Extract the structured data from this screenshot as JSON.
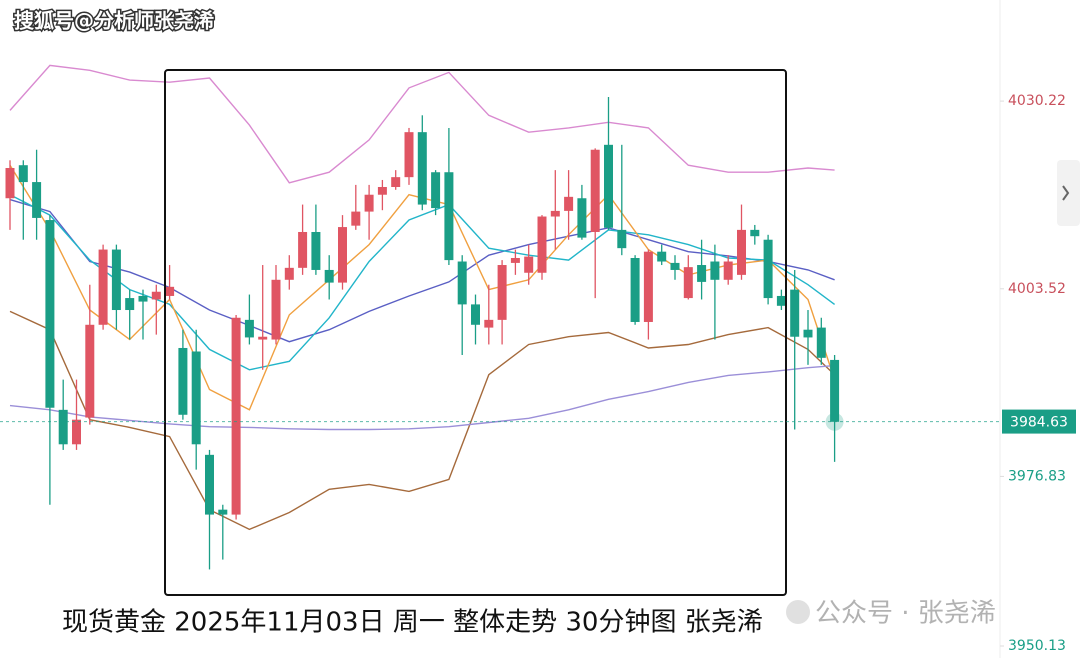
{
  "chart_data": {
    "type": "candlestick",
    "watermark": "搜狐号@分析师张尧浠",
    "caption": "现货黄金 2025年11月03日 周一  整体走势 30分钟图 张尧浠",
    "watermark2": "公众号 · 张尧浠",
    "up_color": "#e05563",
    "down_color": "#1a9e86",
    "ylim": [
      3951,
      4044.6
    ],
    "yticks": [
      4030.22,
      4003.52,
      3976.83,
      3950.13
    ],
    "last_price": 3984.63,
    "ohlc": [
      [
        4016.4,
        4021.8,
        4011.9,
        4020.7
      ],
      [
        4021.1,
        4021.8,
        4010.5,
        4018.7
      ],
      [
        4018.7,
        4023.3,
        4010.5,
        4013.6
      ],
      [
        4013.3,
        4014.0,
        3972.8,
        3986.6
      ],
      [
        3986.3,
        3990.6,
        3980.6,
        3981.4
      ],
      [
        3981.4,
        3990.6,
        3980.6,
        3984.9
      ],
      [
        3985.2,
        4004.1,
        3984.2,
        3998.4
      ],
      [
        3998.4,
        4009.8,
        3997.7,
        4009.1
      ],
      [
        4009.1,
        4009.8,
        3997.7,
        4000.5
      ],
      [
        4002.2,
        4003.4,
        3996.3,
        4000.5
      ],
      [
        4002.5,
        4003.4,
        3996.3,
        4001.7
      ],
      [
        4002.0,
        4004.1,
        3997.0,
        4003.1
      ],
      [
        4002.5,
        4006.9,
        4002.0,
        4003.8
      ],
      [
        3995.1,
        3997.7,
        3984.9,
        3985.6
      ],
      [
        3994.6,
        3997.7,
        3977.8,
        3981.4
      ],
      [
        3979.9,
        3980.6,
        3963.6,
        3971.4
      ],
      [
        3972.1,
        3972.8,
        3965.0,
        3971.4
      ],
      [
        3971.4,
        3999.8,
        3970.7,
        3999.4
      ],
      [
        3999.1,
        4002.7,
        3995.6,
        3996.6
      ],
      [
        3996.3,
        4006.9,
        3992.0,
        3996.7
      ],
      [
        3996.3,
        4006.9,
        3995.6,
        4004.8
      ],
      [
        4004.8,
        4008.3,
        4003.4,
        4006.5
      ],
      [
        4006.5,
        4015.5,
        4005.5,
        4011.6
      ],
      [
        4011.6,
        4015.5,
        4005.5,
        4006.2
      ],
      [
        4006.2,
        4008.3,
        4002.0,
        4004.4
      ],
      [
        4004.4,
        4014.0,
        4003.4,
        4012.3
      ],
      [
        4012.5,
        4018.3,
        4011.9,
        4014.5
      ],
      [
        4014.5,
        4018.3,
        4010.5,
        4016.9
      ],
      [
        4016.9,
        4019.0,
        4014.7,
        4018.0
      ],
      [
        4018.0,
        4020.4,
        4017.6,
        4019.4
      ],
      [
        4019.4,
        4026.4,
        4018.3,
        4025.8
      ],
      [
        4025.8,
        4028.2,
        4014.7,
        4015.5
      ],
      [
        4020.1,
        4020.4,
        4014.0,
        4015.0
      ],
      [
        4020.1,
        4026.4,
        4006.9,
        4007.6
      ],
      [
        4007.4,
        4008.3,
        3994.1,
        4001.3
      ],
      [
        4001.3,
        4002.7,
        3995.6,
        3998.4
      ],
      [
        3998.0,
        4004.1,
        3995.6,
        3999.1
      ],
      [
        3999.1,
        4007.6,
        3995.6,
        4006.9
      ],
      [
        4007.2,
        4009.1,
        4005.5,
        4007.9
      ],
      [
        4005.8,
        4009.8,
        4004.1,
        4008.1
      ],
      [
        4005.8,
        4014.0,
        4004.8,
        4013.8
      ],
      [
        4013.8,
        4020.4,
        4009.1,
        4014.6
      ],
      [
        4014.6,
        4020.4,
        4010.5,
        4016.6
      ],
      [
        4016.4,
        4018.3,
        4010.5,
        4010.8
      ],
      [
        4011.6,
        4023.5,
        4002.2,
        4023.3
      ],
      [
        4024.0,
        4030.8,
        4011.9,
        4012.2
      ],
      [
        4011.9,
        4024.0,
        4008.3,
        4009.3
      ],
      [
        4007.9,
        4008.3,
        3998.4,
        3998.8
      ],
      [
        3998.8,
        4009.1,
        3996.3,
        4008.8
      ],
      [
        4008.8,
        4009.8,
        4006.9,
        4007.4
      ],
      [
        4007.2,
        4008.3,
        4004.8,
        4006.2
      ],
      [
        4002.2,
        4008.3,
        4002.0,
        4006.6
      ],
      [
        4006.9,
        4010.5,
        4002.0,
        4004.5
      ],
      [
        4007.4,
        4009.8,
        3996.3,
        4004.8
      ],
      [
        4004.8,
        4008.3,
        4004.1,
        4007.4
      ],
      [
        4005.5,
        4015.5,
        4004.8,
        4011.9
      ],
      [
        4011.9,
        4012.6,
        4009.8,
        4011.0
      ],
      [
        4010.5,
        4011.2,
        4001.3,
        4002.2
      ],
      [
        4002.5,
        4003.4,
        4000.5,
        4001.1
      ],
      [
        4003.4,
        4006.2,
        3983.5,
        3996.7
      ],
      [
        3997.7,
        4000.5,
        3992.7,
        3996.6
      ],
      [
        3998.0,
        3999.4,
        3992.7,
        3993.7
      ],
      [
        3993.4,
        3994.1,
        3978.9,
        3984.6
      ]
    ],
    "line_x": [
      0,
      3,
      6,
      9,
      12,
      15,
      18,
      21,
      24,
      27,
      30,
      33,
      36,
      39,
      42,
      45,
      48,
      51,
      54,
      57,
      60,
      62
    ],
    "lines": [
      {
        "color": "#d98ad0",
        "values": [
          4028.9,
          4035.3,
          4034.6,
          4033.2,
          4032.9,
          4033.5,
          4026.8,
          4018.6,
          4020.1,
          4024.7,
          4032.1,
          4034.3,
          4028.2,
          4025.8,
          4026.4,
          4027.2,
          4026.4,
          4021.1,
          4020.1,
          4020.1,
          4020.7,
          4020.4
        ]
      },
      {
        "color": "#a56a3c",
        "values": [
          4000.3,
          3997.7,
          3984.9,
          3983.8,
          3982.5,
          3972.1,
          3969.3,
          3971.7,
          3975.0,
          3975.7,
          3974.7,
          3976.4,
          3991.3,
          3995.6,
          3996.7,
          3997.3,
          3995.1,
          3995.6,
          3997.0,
          3998.0,
          3994.9,
          3991.3
        ]
      },
      {
        "color": "#5a5fc4",
        "values": [
          4016.2,
          4014.5,
          4007.4,
          4005.9,
          4003.7,
          4000.5,
          3998.3,
          3996.0,
          3997.7,
          4000.3,
          4002.5,
          4004.5,
          4008.3,
          4009.8,
          4011.0,
          4012.2,
          4010.5,
          4008.8,
          4008.2,
          4007.4,
          4006.2,
          4004.8
        ]
      },
      {
        "color": "#22b5c9",
        "values": [
          4016.9,
          4014.0,
          4007.6,
          4003.4,
          4001.3,
          3994.9,
          3992.0,
          3993.2,
          3999.4,
          4007.4,
          4013.3,
          4015.5,
          4009.3,
          4008.3,
          4007.6,
          4011.9,
          4011.2,
          4009.8,
          4007.9,
          4007.6,
          4004.1,
          4001.3
        ]
      },
      {
        "color": "#f0a040",
        "values": [
          4021.1,
          4011.9,
          4000.5,
          3996.3,
          4002.0,
          3989.2,
          3986.3,
          3999.8,
          4004.8,
          4009.8,
          4016.9,
          4015.5,
          4003.4,
          4004.8,
          4011.2,
          4016.9,
          4009.1,
          4005.5,
          4006.9,
          4007.6,
          4002.0,
          3990.6
        ]
      },
      {
        "color": "#9b8fd8",
        "values": [
          3986.9,
          3986.3,
          3985.3,
          3984.8,
          3984.3,
          3983.9,
          3983.8,
          3983.6,
          3983.5,
          3983.5,
          3983.6,
          3983.9,
          3984.5,
          3985.1,
          3986.3,
          3987.8,
          3988.9,
          3990.2,
          3991.2,
          3991.7,
          3992.3,
          3992.6
        ]
      }
    ]
  }
}
